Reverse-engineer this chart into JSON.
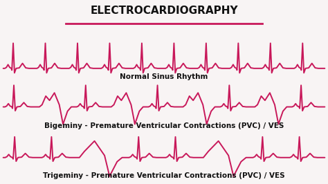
{
  "title": "ELECTROCARDIOGRAPHY",
  "title_color": "#111111",
  "label1": "Normal Sinus Rhythm",
  "label2": "Bigeminy - Premature Ventricular Contractions (PVC) / VES",
  "label3": "Trigeminy - Premature Ventricular Contractions (PVC) / VES",
  "ecg_color": "#C8185A",
  "underline_color": "#C8185A",
  "bg_color": "#f8f4f4",
  "line_width": 1.4,
  "label_fontsize": 7.5,
  "title_fontsize": 11
}
